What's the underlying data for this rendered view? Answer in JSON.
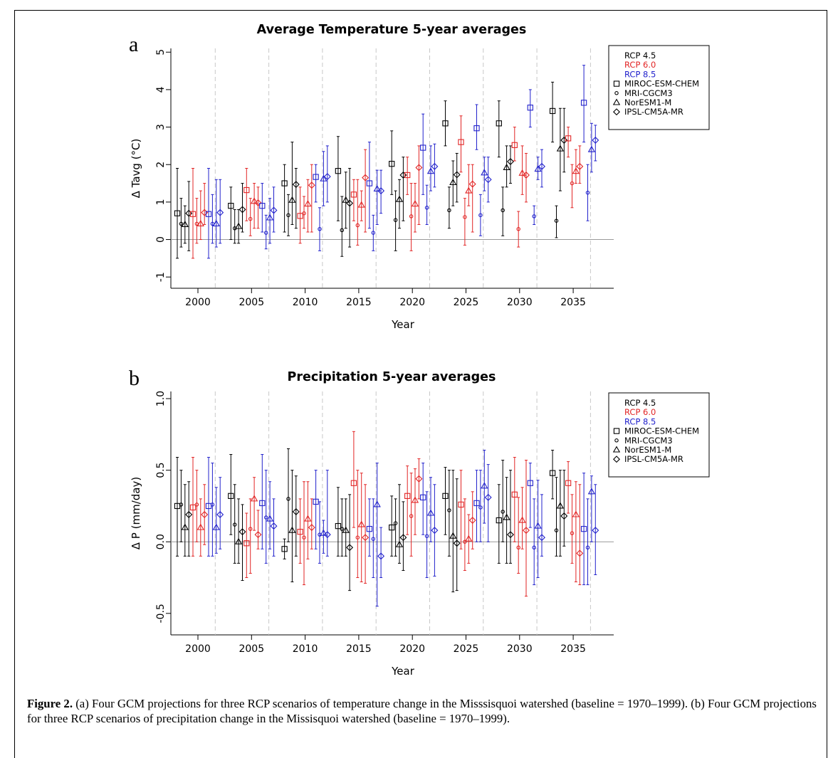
{
  "figure": {
    "caption_label": "Figure 2.",
    "caption_text": "(a) Four GCM projections for three RCP scenarios of temperature change in the Misssisquoi watershed (baseline = 1970–1999). (b) Four GCM projections for three RCP scenarios of precipitation change in the Missisquoi watershed (baseline = 1970–1999)."
  },
  "colors": {
    "rcp45": "#000000",
    "rcp60": "#e22525",
    "rcp85": "#2222cc",
    "divider": "#c8c8c8",
    "baseline": "#999999"
  },
  "chart_data": [
    {
      "type": "scatter",
      "panel_label": "a",
      "title": "Average Temperature 5-year averages",
      "xlabel": "Year",
      "ylabel": "Δ Tavg (°C)",
      "ylim": [
        -1.3,
        5.1
      ],
      "yticks": [
        "-1",
        "0",
        "1",
        "2",
        "3",
        "4",
        "5"
      ],
      "x_ticks": [
        "2000",
        "2005",
        "2010",
        "2015",
        "2020",
        "2025",
        "2030",
        "2035"
      ],
      "legend": {
        "position": "top-right",
        "scenarios": [
          "RCP 4.5",
          "RCP 6.0",
          "RCP 8.5"
        ],
        "models": [
          {
            "name": "MIROC-ESM-CHEM",
            "marker": "square"
          },
          {
            "name": "MRI-CGCM3",
            "marker": "circle"
          },
          {
            "name": "NorESM1-M",
            "marker": "triangle"
          },
          {
            "name": "IPSL-CM5A-MR",
            "marker": "diamond"
          }
        ]
      },
      "periods": [
        "2000",
        "2005",
        "2010",
        "2015",
        "2020",
        "2025",
        "2030",
        "2035"
      ],
      "series": [
        {
          "scenario": "RCP 4.5",
          "model": "MIROC-ESM-CHEM",
          "values": [
            0.7,
            0.9,
            1.5,
            1.83,
            2.02,
            3.1,
            3.1,
            3.43
          ],
          "low": [
            -0.5,
            0.0,
            0.2,
            0.5,
            1.2,
            2.5,
            2.2,
            2.6
          ],
          "high": [
            1.9,
            1.4,
            2.0,
            2.75,
            2.9,
            3.7,
            3.7,
            4.2
          ]
        },
        {
          "scenario": "RCP 4.5",
          "model": "MRI-CGCM3",
          "values": [
            0.42,
            0.3,
            0.65,
            0.25,
            0.52,
            0.78,
            0.78,
            0.5
          ],
          "low": [
            -0.2,
            -0.1,
            0.1,
            -0.45,
            -0.3,
            0.3,
            0.1,
            0.05
          ],
          "high": [
            1.1,
            0.8,
            1.2,
            1.15,
            1.3,
            1.4,
            1.4,
            0.9
          ]
        },
        {
          "scenario": "RCP 4.5",
          "model": "NorESM1-M",
          "values": [
            0.4,
            0.35,
            1.05,
            1.05,
            1.07,
            1.52,
            1.92,
            2.42
          ],
          "low": [
            -0.1,
            -0.1,
            0.4,
            0.3,
            0.3,
            0.9,
            1.4,
            1.3
          ],
          "high": [
            0.9,
            0.8,
            2.6,
            1.8,
            1.6,
            2.1,
            2.5,
            3.5
          ]
        },
        {
          "scenario": "RCP 4.5",
          "model": "IPSL-CM5A-MR",
          "values": [
            0.7,
            0.8,
            1.47,
            0.97,
            1.72,
            1.73,
            2.08,
            2.65
          ],
          "low": [
            -0.3,
            0.2,
            0.3,
            -0.2,
            0.5,
            1.0,
            1.5,
            1.8
          ],
          "high": [
            1.55,
            1.5,
            1.9,
            1.9,
            2.2,
            2.3,
            2.5,
            3.5
          ]
        },
        {
          "scenario": "RCP 6.0",
          "model": "MIROC-ESM-CHEM",
          "values": [
            0.68,
            1.32,
            0.63,
            1.2,
            1.72,
            2.6,
            2.52,
            2.7
          ],
          "low": [
            -0.5,
            0.5,
            -0.1,
            0.5,
            1.2,
            1.8,
            2.1,
            2.2
          ],
          "high": [
            1.9,
            1.9,
            1.4,
            1.6,
            2.2,
            3.3,
            3.0,
            3.0
          ]
        },
        {
          "scenario": "RCP 6.0",
          "model": "MRI-CGCM3",
          "values": [
            0.42,
            0.55,
            0.7,
            0.38,
            0.62,
            0.6,
            0.28,
            1.5
          ],
          "low": [
            -0.1,
            0.1,
            0.3,
            -0.15,
            -0.3,
            -0.15,
            -0.2,
            0.85
          ],
          "high": [
            1.1,
            1.1,
            1.15,
            1.6,
            1.5,
            1.1,
            0.75,
            2.0
          ]
        },
        {
          "scenario": "RCP 6.0",
          "model": "NorESM1-M",
          "values": [
            0.42,
            1.02,
            0.95,
            0.92,
            0.95,
            1.3,
            1.77,
            1.82
          ],
          "low": [
            0.0,
            0.3,
            0.2,
            0.5,
            0.2,
            0.9,
            1.2,
            1.5
          ],
          "high": [
            1.3,
            1.5,
            1.6,
            1.3,
            1.5,
            2.0,
            2.5,
            2.4
          ]
        },
        {
          "scenario": "RCP 6.0",
          "model": "IPSL-CM5A-MR",
          "values": [
            0.72,
            0.98,
            1.45,
            1.65,
            1.92,
            1.48,
            1.72,
            1.95
          ],
          "low": [
            0.4,
            0.3,
            0.2,
            0.2,
            0.4,
            0.2,
            1.0,
            1.5
          ],
          "high": [
            1.5,
            1.4,
            2.0,
            2.4,
            2.5,
            2.0,
            2.3,
            2.5
          ]
        },
        {
          "scenario": "RCP 8.5",
          "model": "MIROC-ESM-CHEM",
          "values": [
            0.68,
            0.9,
            1.67,
            1.5,
            2.45,
            2.97,
            3.52,
            3.65
          ],
          "low": [
            -0.5,
            0.2,
            1.0,
            0.3,
            1.2,
            2.4,
            3.0,
            2.6
          ],
          "high": [
            1.9,
            1.5,
            2.0,
            2.6,
            3.35,
            3.6,
            4.0,
            4.65
          ]
        },
        {
          "scenario": "RCP 8.5",
          "model": "MRI-CGCM3",
          "values": [
            0.42,
            0.18,
            0.28,
            0.18,
            0.85,
            0.65,
            0.62,
            1.25
          ],
          "low": [
            -0.1,
            -0.25,
            -0.3,
            -0.3,
            0.4,
            0.1,
            0.4,
            0.5
          ],
          "high": [
            1.2,
            0.65,
            0.85,
            0.65,
            1.45,
            1.2,
            0.9,
            2.0
          ]
        },
        {
          "scenario": "RCP 8.5",
          "model": "NorESM1-M",
          "values": [
            0.42,
            0.58,
            1.62,
            1.35,
            1.82,
            1.78,
            1.88,
            2.4
          ],
          "low": [
            -0.2,
            -0.1,
            0.9,
            0.4,
            1.3,
            1.3,
            1.6,
            1.8
          ],
          "high": [
            1.6,
            1.1,
            2.35,
            1.85,
            2.5,
            2.2,
            2.2,
            3.1
          ]
        },
        {
          "scenario": "RCP 8.5",
          "model": "IPSL-CM5A-MR",
          "values": [
            0.72,
            0.78,
            1.68,
            1.3,
            1.95,
            1.6,
            1.95,
            2.65
          ],
          "low": [
            -0.1,
            0.2,
            1.0,
            0.7,
            1.4,
            1.0,
            1.4,
            2.1
          ],
          "high": [
            1.6,
            1.4,
            2.5,
            1.85,
            2.55,
            2.2,
            2.4,
            3.05
          ]
        }
      ]
    },
    {
      "type": "scatter",
      "panel_label": "b",
      "title": "Precipitation 5-year averages",
      "xlabel": "Year",
      "ylabel": "Δ P (mm/day)",
      "ylim": [
        -0.65,
        1.05
      ],
      "yticks": [
        "-0.5",
        "0.0",
        "0.5",
        "1.0"
      ],
      "x_ticks": [
        "2000",
        "2005",
        "2010",
        "2015",
        "2020",
        "2025",
        "2030",
        "2035"
      ],
      "legend": {
        "position": "top-right",
        "scenarios": [
          "RCP 4.5",
          "RCP 6.0",
          "RCP 8.5"
        ],
        "models": [
          {
            "name": "MIROC-ESM-CHEM",
            "marker": "square"
          },
          {
            "name": "MRI-CGCM3",
            "marker": "circle"
          },
          {
            "name": "NorESM1-M",
            "marker": "triangle"
          },
          {
            "name": "IPSL-CM5A-MR",
            "marker": "diamond"
          }
        ]
      },
      "periods": [
        "2000",
        "2005",
        "2010",
        "2015",
        "2020",
        "2025",
        "2030",
        "2035"
      ],
      "series": [
        {
          "scenario": "RCP 4.5",
          "model": "MIROC-ESM-CHEM",
          "values": [
            0.25,
            0.32,
            -0.05,
            0.11,
            0.1,
            0.32,
            0.15,
            0.48
          ],
          "low": [
            -0.1,
            0.05,
            -0.12,
            -0.1,
            -0.1,
            0.05,
            -0.15,
            0.3
          ],
          "high": [
            0.59,
            0.61,
            0.02,
            0.38,
            0.32,
            0.52,
            0.4,
            0.64
          ]
        },
        {
          "scenario": "RCP 4.5",
          "model": "MRI-CGCM3",
          "values": [
            0.26,
            0.12,
            0.3,
            0.09,
            0.13,
            0.22,
            0.21,
            0.08
          ],
          "low": [
            0.0,
            -0.15,
            0.0,
            -0.1,
            -0.1,
            -0.1,
            0.0,
            -0.1
          ],
          "high": [
            0.5,
            0.4,
            0.65,
            0.3,
            0.3,
            0.5,
            0.57,
            0.45
          ]
        },
        {
          "scenario": "RCP 4.5",
          "model": "NorESM1-M",
          "values": [
            0.1,
            0.0,
            0.08,
            0.08,
            -0.02,
            0.04,
            0.17,
            0.25
          ],
          "low": [
            -0.1,
            -0.15,
            -0.28,
            -0.1,
            -0.15,
            -0.35,
            -0.15,
            -0.1
          ],
          "high": [
            0.4,
            0.3,
            0.5,
            0.3,
            0.4,
            0.5,
            0.45,
            0.5
          ]
        },
        {
          "scenario": "RCP 4.5",
          "model": "IPSL-CM5A-MR",
          "values": [
            0.19,
            0.07,
            0.21,
            -0.04,
            0.03,
            -0.01,
            0.05,
            0.18
          ],
          "low": [
            -0.1,
            -0.27,
            -0.1,
            -0.34,
            -0.2,
            -0.34,
            -0.15,
            -0.03
          ],
          "high": [
            0.42,
            0.26,
            0.46,
            0.33,
            0.28,
            0.44,
            0.5,
            0.5
          ]
        },
        {
          "scenario": "RCP 6.0",
          "model": "MIROC-ESM-CHEM",
          "values": [
            0.24,
            -0.01,
            0.07,
            0.41,
            0.32,
            0.26,
            0.33,
            0.41
          ],
          "low": [
            -0.1,
            -0.25,
            -0.15,
            0.1,
            0.05,
            -0.05,
            0.0,
            0.2
          ],
          "high": [
            0.59,
            0.2,
            0.3,
            0.77,
            0.53,
            0.5,
            0.59,
            0.56
          ]
        },
        {
          "scenario": "RCP 6.0",
          "model": "MRI-CGCM3",
          "values": [
            0.26,
            0.09,
            0.03,
            0.03,
            0.18,
            0.0,
            -0.04,
            0.06
          ],
          "low": [
            0.0,
            -0.22,
            -0.3,
            -0.25,
            -0.1,
            -0.2,
            -0.22,
            -0.15
          ],
          "high": [
            0.5,
            0.3,
            0.42,
            0.5,
            0.48,
            0.3,
            0.31,
            0.33
          ]
        },
        {
          "scenario": "RCP 6.0",
          "model": "NorESM1-M",
          "values": [
            0.1,
            0.3,
            0.16,
            0.12,
            0.29,
            0.02,
            0.15,
            0.19
          ],
          "low": [
            -0.1,
            0.08,
            -0.12,
            -0.28,
            0.05,
            -0.15,
            -0.05,
            -0.28
          ],
          "high": [
            0.3,
            0.45,
            0.42,
            0.48,
            0.51,
            0.19,
            0.38,
            0.42
          ]
        },
        {
          "scenario": "RCP 6.0",
          "model": "IPSL-CM5A-MR",
          "values": [
            0.19,
            0.05,
            0.1,
            0.03,
            0.44,
            0.15,
            0.08,
            -0.08
          ],
          "low": [
            -0.02,
            -0.05,
            -0.05,
            -0.29,
            0.3,
            -0.05,
            -0.38,
            -0.3
          ],
          "high": [
            0.4,
            0.22,
            0.3,
            0.4,
            0.58,
            0.35,
            0.57,
            0.4
          ]
        },
        {
          "scenario": "RCP 8.5",
          "model": "MIROC-ESM-CHEM",
          "values": [
            0.25,
            0.27,
            0.28,
            0.09,
            0.31,
            0.27,
            0.41,
            0.09
          ],
          "low": [
            -0.1,
            -0.05,
            -0.05,
            -0.1,
            0.05,
            0.0,
            0.1,
            -0.3
          ],
          "high": [
            0.59,
            0.61,
            0.5,
            0.3,
            0.55,
            0.5,
            0.55,
            0.48
          ]
        },
        {
          "scenario": "RCP 8.5",
          "model": "MRI-CGCM3",
          "values": [
            0.26,
            0.17,
            0.05,
            0.02,
            0.04,
            0.24,
            -0.04,
            -0.04
          ],
          "low": [
            -0.1,
            -0.15,
            -0.15,
            -0.25,
            -0.25,
            0.0,
            -0.3,
            -0.3
          ],
          "high": [
            0.55,
            0.5,
            0.28,
            0.3,
            0.35,
            0.5,
            0.3,
            0.3
          ]
        },
        {
          "scenario": "RCP 8.5",
          "model": "NorESM1-M",
          "values": [
            0.1,
            0.16,
            0.06,
            0.26,
            0.2,
            0.39,
            0.11,
            0.35
          ],
          "low": [
            -0.08,
            -0.05,
            -0.08,
            -0.45,
            0.0,
            0.13,
            -0.25,
            0.0
          ],
          "high": [
            0.38,
            0.42,
            0.15,
            0.55,
            0.45,
            0.64,
            0.43,
            0.46
          ]
        },
        {
          "scenario": "RCP 8.5",
          "model": "IPSL-CM5A-MR",
          "values": [
            0.19,
            0.11,
            0.05,
            -0.1,
            0.08,
            0.31,
            0.03,
            0.08
          ],
          "low": [
            -0.05,
            -0.1,
            -0.1,
            -0.25,
            -0.24,
            0.0,
            -0.1,
            -0.23
          ],
          "high": [
            0.45,
            0.3,
            0.5,
            0.1,
            0.4,
            0.54,
            0.33,
            0.4
          ]
        }
      ]
    }
  ]
}
